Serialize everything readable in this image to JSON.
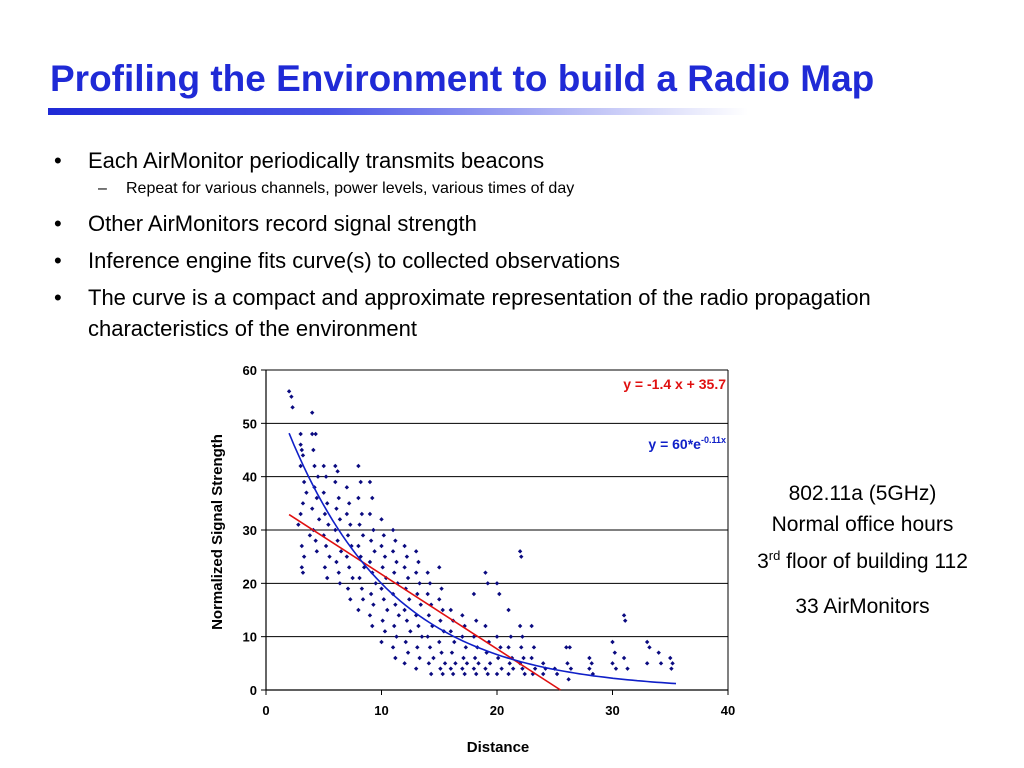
{
  "slide": {
    "title": "Profiling the Environment to build a Radio Map",
    "bullets": [
      "Each AirMonitor periodically transmits beacons",
      "Other AirMonitors record signal strength",
      "Inference engine fits curve(s) to collected observations",
      "The curve is a compact and approximate representation of the radio propagation characteristics of the environment"
    ],
    "sub_bullet": "Repeat for various channels, power levels, various times of day",
    "bullet_symbol": "•",
    "sub_symbol": "–"
  },
  "info": {
    "line1": "802.11a (5GHz)",
    "line2": "Normal office hours",
    "line3_num": "3",
    "line3_sup": "rd",
    "line3_rest": " floor of building 112",
    "line4": "33 AirMonitors"
  },
  "colors": {
    "title": "#1f2ad6",
    "points": "#0a0a80",
    "linear_fit": "#e01010",
    "exp_fit": "#1020c8"
  },
  "chart_data": {
    "type": "scatter",
    "xlabel": "Distance",
    "ylabel": "Normalized Signal Strength",
    "xlim": [
      0,
      40
    ],
    "ylim": [
      0,
      60
    ],
    "xticks": [
      "0",
      "10",
      "20",
      "30",
      "40"
    ],
    "yticks": [
      "0",
      "10",
      "20",
      "30",
      "40",
      "50",
      "60"
    ],
    "grid": "horizontal",
    "fits": [
      {
        "label": "y = -1.4 x + 35.7",
        "kind": "linear",
        "slope": -1.4,
        "intercept": 35.7,
        "x_range": [
          2,
          25.5
        ]
      },
      {
        "label_main": "y = 60*e",
        "label_exp": "-0.11x",
        "kind": "exponential",
        "a": 60,
        "b": -0.11,
        "x_range": [
          2,
          35.5
        ]
      }
    ],
    "points": [
      [
        2,
        56
      ],
      [
        2.2,
        55
      ],
      [
        2.3,
        53
      ],
      [
        3,
        48
      ],
      [
        3,
        46
      ],
      [
        3.1,
        45
      ],
      [
        3.2,
        44
      ],
      [
        3,
        42
      ],
      [
        3.3,
        39
      ],
      [
        3.5,
        37
      ],
      [
        3.2,
        35
      ],
      [
        3,
        33
      ],
      [
        2.8,
        31
      ],
      [
        3.1,
        27
      ],
      [
        3.3,
        25
      ],
      [
        3.1,
        23
      ],
      [
        3.2,
        22
      ],
      [
        4,
        52
      ],
      [
        4,
        48
      ],
      [
        4.3,
        48
      ],
      [
        4.1,
        45
      ],
      [
        4.2,
        42
      ],
      [
        4.5,
        40
      ],
      [
        4.2,
        38
      ],
      [
        4.4,
        36
      ],
      [
        4,
        34
      ],
      [
        4.6,
        32
      ],
      [
        4.1,
        30
      ],
      [
        4.3,
        28
      ],
      [
        4.4,
        26
      ],
      [
        3.8,
        29
      ],
      [
        5,
        42
      ],
      [
        5.2,
        40
      ],
      [
        5,
        37
      ],
      [
        5.3,
        35
      ],
      [
        5.1,
        33
      ],
      [
        5.4,
        31
      ],
      [
        5,
        29
      ],
      [
        5.2,
        27
      ],
      [
        5.5,
        25
      ],
      [
        5.1,
        23
      ],
      [
        5.3,
        21
      ],
      [
        6,
        42
      ],
      [
        6.2,
        41
      ],
      [
        6,
        39
      ],
      [
        6.3,
        36
      ],
      [
        6.1,
        34
      ],
      [
        6.4,
        32
      ],
      [
        6,
        30
      ],
      [
        6.2,
        28
      ],
      [
        6.5,
        26
      ],
      [
        6.1,
        24
      ],
      [
        6.3,
        22
      ],
      [
        6.4,
        20
      ],
      [
        7,
        38
      ],
      [
        7.2,
        35
      ],
      [
        7,
        33
      ],
      [
        7.3,
        31
      ],
      [
        7.1,
        29
      ],
      [
        7.4,
        27
      ],
      [
        7,
        25
      ],
      [
        7.2,
        23
      ],
      [
        7.5,
        21
      ],
      [
        7.1,
        19
      ],
      [
        7.3,
        17
      ],
      [
        8,
        42
      ],
      [
        8.2,
        39
      ],
      [
        8,
        36
      ],
      [
        8.3,
        33
      ],
      [
        8.1,
        31
      ],
      [
        8.4,
        29
      ],
      [
        8,
        27
      ],
      [
        8.2,
        25
      ],
      [
        8.5,
        23
      ],
      [
        8.1,
        21
      ],
      [
        8.3,
        19
      ],
      [
        8.4,
        17
      ],
      [
        8,
        15
      ],
      [
        9,
        39
      ],
      [
        9.2,
        36
      ],
      [
        9,
        33
      ],
      [
        9.3,
        30
      ],
      [
        9.1,
        28
      ],
      [
        9.4,
        26
      ],
      [
        9,
        24
      ],
      [
        9.2,
        22
      ],
      [
        9.5,
        20
      ],
      [
        9.1,
        18
      ],
      [
        9.3,
        16
      ],
      [
        9,
        14
      ],
      [
        9.2,
        12
      ],
      [
        10,
        32
      ],
      [
        10.2,
        29
      ],
      [
        10,
        27
      ],
      [
        10.3,
        25
      ],
      [
        10.1,
        23
      ],
      [
        10.4,
        21
      ],
      [
        10,
        19
      ],
      [
        10.2,
        17
      ],
      [
        10.5,
        15
      ],
      [
        10.1,
        13
      ],
      [
        10.3,
        11
      ],
      [
        10,
        9
      ],
      [
        11,
        30
      ],
      [
        11.2,
        28
      ],
      [
        11,
        26
      ],
      [
        11.3,
        24
      ],
      [
        11.1,
        22
      ],
      [
        11.4,
        20
      ],
      [
        11,
        18
      ],
      [
        11.2,
        16
      ],
      [
        11.5,
        14
      ],
      [
        11.1,
        12
      ],
      [
        11.3,
        10
      ],
      [
        11,
        8
      ],
      [
        11.2,
        6
      ],
      [
        12,
        27
      ],
      [
        12.2,
        25
      ],
      [
        12,
        23
      ],
      [
        12.3,
        21
      ],
      [
        12.1,
        19
      ],
      [
        12.4,
        17
      ],
      [
        12,
        15
      ],
      [
        12.2,
        13
      ],
      [
        12.5,
        11
      ],
      [
        12.1,
        9
      ],
      [
        12.3,
        7
      ],
      [
        12,
        5
      ],
      [
        13,
        26
      ],
      [
        13.2,
        24
      ],
      [
        13,
        22
      ],
      [
        13.3,
        20
      ],
      [
        13.1,
        18
      ],
      [
        13.4,
        16
      ],
      [
        13,
        14
      ],
      [
        13.2,
        12
      ],
      [
        13.5,
        10
      ],
      [
        13.1,
        8
      ],
      [
        13.3,
        6
      ],
      [
        13,
        4
      ],
      [
        14,
        22
      ],
      [
        14.2,
        20
      ],
      [
        14,
        18
      ],
      [
        14.3,
        16
      ],
      [
        14.1,
        14
      ],
      [
        14.4,
        12
      ],
      [
        14,
        10
      ],
      [
        14.2,
        8
      ],
      [
        14.5,
        6
      ],
      [
        14.1,
        5
      ],
      [
        14.3,
        3
      ],
      [
        15,
        23
      ],
      [
        15.2,
        19
      ],
      [
        15,
        17
      ],
      [
        15.3,
        15
      ],
      [
        15.1,
        13
      ],
      [
        15.4,
        11
      ],
      [
        15,
        9
      ],
      [
        15.2,
        7
      ],
      [
        15.5,
        5
      ],
      [
        15.1,
        4
      ],
      [
        15.3,
        3
      ],
      [
        16,
        15
      ],
      [
        16.2,
        13
      ],
      [
        16,
        11
      ],
      [
        16.3,
        9
      ],
      [
        16.1,
        7
      ],
      [
        16.4,
        5
      ],
      [
        16,
        4
      ],
      [
        16.2,
        3
      ],
      [
        17,
        14
      ],
      [
        17.2,
        12
      ],
      [
        17,
        10
      ],
      [
        17.3,
        8
      ],
      [
        17.1,
        6
      ],
      [
        17.4,
        5
      ],
      [
        17,
        4
      ],
      [
        17.2,
        3
      ],
      [
        18,
        18
      ],
      [
        18.2,
        13
      ],
      [
        18,
        10
      ],
      [
        18.3,
        8
      ],
      [
        18.1,
        6
      ],
      [
        18.4,
        5
      ],
      [
        18,
        4
      ],
      [
        18.2,
        3
      ],
      [
        19,
        22
      ],
      [
        19.2,
        20
      ],
      [
        19,
        12
      ],
      [
        19.3,
        9
      ],
      [
        19.1,
        7
      ],
      [
        19.4,
        5
      ],
      [
        19,
        4
      ],
      [
        19.2,
        3
      ],
      [
        20,
        20
      ],
      [
        20.2,
        18
      ],
      [
        20,
        10
      ],
      [
        20.3,
        8
      ],
      [
        20.1,
        6
      ],
      [
        20.4,
        4
      ],
      [
        20,
        3
      ],
      [
        21,
        15
      ],
      [
        21.2,
        10
      ],
      [
        21,
        8
      ],
      [
        21.3,
        6
      ],
      [
        21.1,
        5
      ],
      [
        21.4,
        4
      ],
      [
        21,
        3
      ],
      [
        22,
        26
      ],
      [
        22.1,
        25
      ],
      [
        22,
        12
      ],
      [
        22.2,
        10
      ],
      [
        22.1,
        8
      ],
      [
        22.3,
        6
      ],
      [
        22,
        5
      ],
      [
        22.2,
        4
      ],
      [
        22.4,
        3
      ],
      [
        23,
        12
      ],
      [
        23.2,
        8
      ],
      [
        23,
        6
      ],
      [
        23.3,
        4
      ],
      [
        23.1,
        3
      ],
      [
        24,
        5
      ],
      [
        24.2,
        4
      ],
      [
        24,
        3
      ],
      [
        25,
        4
      ],
      [
        25.2,
        3
      ],
      [
        26,
        8
      ],
      [
        26.3,
        8
      ],
      [
        26.1,
        5
      ],
      [
        26.4,
        4
      ],
      [
        26.2,
        2
      ],
      [
        28,
        6
      ],
      [
        28.2,
        5
      ],
      [
        28,
        4
      ],
      [
        28.3,
        3
      ],
      [
        30,
        9
      ],
      [
        30.2,
        7
      ],
      [
        30,
        5
      ],
      [
        30.3,
        4
      ],
      [
        31,
        14
      ],
      [
        31.1,
        13
      ],
      [
        31,
        6
      ],
      [
        31.3,
        4
      ],
      [
        33,
        9
      ],
      [
        33.2,
        8
      ],
      [
        33,
        5
      ],
      [
        34,
        7
      ],
      [
        34.2,
        5
      ],
      [
        35,
        6
      ],
      [
        35.2,
        5
      ],
      [
        35.1,
        4
      ]
    ]
  }
}
